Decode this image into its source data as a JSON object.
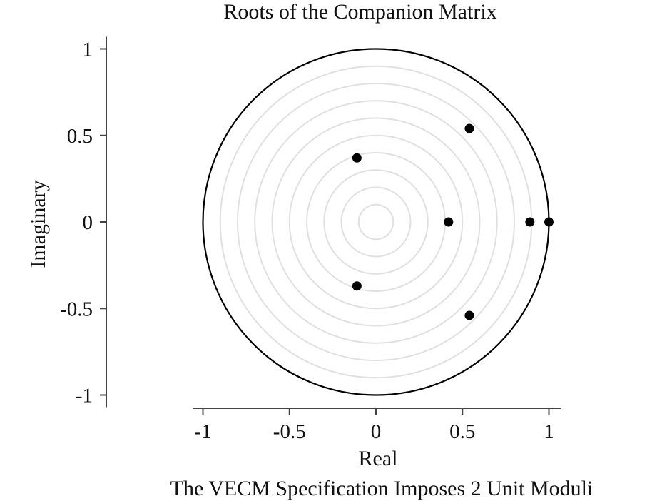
{
  "chart_data": {
    "type": "scatter",
    "title": "Roots of the Companion Matrix",
    "xlabel": "Real",
    "ylabel": "Imaginary",
    "note": "The VECM Specification Imposes 2 Unit Moduli",
    "xlim": [
      -1.06,
      1.07
    ],
    "ylim": [
      -1.07,
      1.07
    ],
    "x_ticks": [
      {
        "value": -1,
        "label": "-1"
      },
      {
        "value": -0.5,
        "label": "-0.5"
      },
      {
        "value": 0,
        "label": "0"
      },
      {
        "value": 0.5,
        "label": "0.5"
      },
      {
        "value": 1,
        "label": "1"
      }
    ],
    "y_ticks": [
      {
        "value": 1,
        "label": "1"
      },
      {
        "value": 0.5,
        "label": "0.5"
      },
      {
        "value": 0,
        "label": "0"
      },
      {
        "value": -0.5,
        "label": "-0.5"
      },
      {
        "value": -1,
        "label": "-1"
      }
    ],
    "unit_circle_radius": 1,
    "grid_circle_radii": [
      0.1,
      0.2,
      0.3,
      0.4,
      0.5,
      0.6,
      0.7,
      0.8,
      0.9
    ],
    "points": [
      {
        "x": 0.54,
        "y": 0.54
      },
      {
        "x": -0.11,
        "y": 0.37
      },
      {
        "x": 0.42,
        "y": 0.0
      },
      {
        "x": 0.89,
        "y": 0.0
      },
      {
        "x": 1.0,
        "y": 0.0
      },
      {
        "x": -0.11,
        "y": -0.37
      },
      {
        "x": 0.54,
        "y": -0.54
      }
    ],
    "colors": {
      "points": "#000000",
      "unit_circle": "#000000",
      "grid_circles": "#e0e0e0",
      "axes": "#444444"
    }
  }
}
